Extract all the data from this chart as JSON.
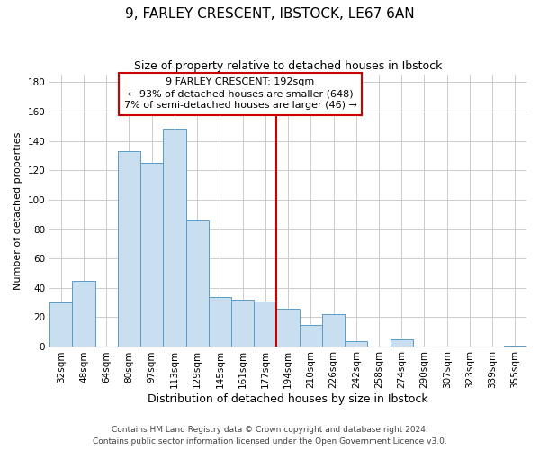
{
  "title": "9, FARLEY CRESCENT, IBSTOCK, LE67 6AN",
  "subtitle": "Size of property relative to detached houses in Ibstock",
  "xlabel": "Distribution of detached houses by size in Ibstock",
  "ylabel": "Number of detached properties",
  "bar_labels": [
    "32sqm",
    "48sqm",
    "64sqm",
    "80sqm",
    "97sqm",
    "113sqm",
    "129sqm",
    "145sqm",
    "161sqm",
    "177sqm",
    "194sqm",
    "210sqm",
    "226sqm",
    "242sqm",
    "258sqm",
    "274sqm",
    "290sqm",
    "307sqm",
    "323sqm",
    "339sqm",
    "355sqm"
  ],
  "bar_values": [
    30,
    45,
    0,
    133,
    125,
    148,
    86,
    34,
    32,
    31,
    26,
    15,
    22,
    4,
    0,
    5,
    0,
    0,
    0,
    0,
    1
  ],
  "bar_color": "#c9dff0",
  "bar_edge_color": "#5b9bc8",
  "vline_color": "#cc0000",
  "vline_idx": 10,
  "annotation_title": "9 FARLEY CRESCENT: 192sqm",
  "annotation_line1": "← 93% of detached houses are smaller (648)",
  "annotation_line2": "7% of semi-detached houses are larger (46) →",
  "annotation_box_color": "#ffffff",
  "annotation_box_edge": "#cc0000",
  "ylim": [
    0,
    185
  ],
  "yticks": [
    0,
    20,
    40,
    60,
    80,
    100,
    120,
    140,
    160,
    180
  ],
  "footer_line1": "Contains HM Land Registry data © Crown copyright and database right 2024.",
  "footer_line2": "Contains public sector information licensed under the Open Government Licence v3.0.",
  "background_color": "#ffffff",
  "grid_color": "#cccccc",
  "title_fontsize": 11,
  "subtitle_fontsize": 9,
  "xlabel_fontsize": 9,
  "ylabel_fontsize": 8,
  "tick_fontsize": 7.5,
  "annotation_fontsize": 8,
  "footer_fontsize": 6.5
}
